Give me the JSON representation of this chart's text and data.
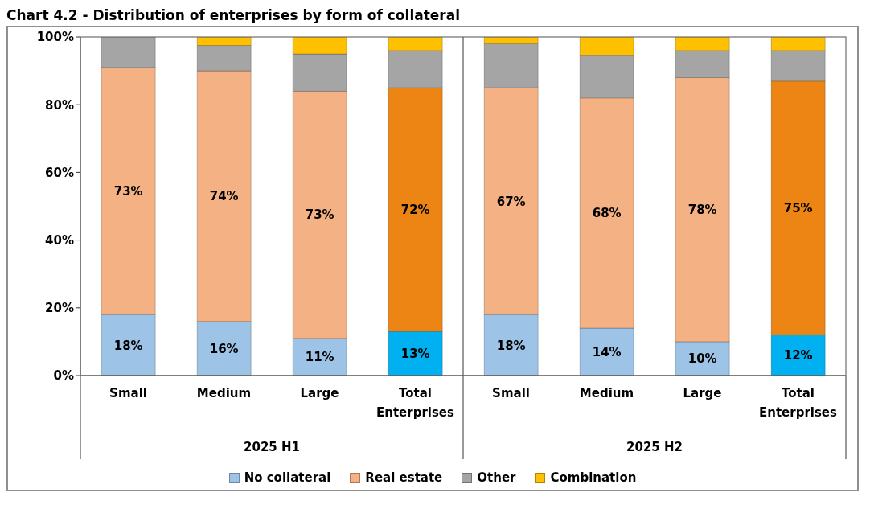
{
  "chart_data": {
    "type": "bar",
    "title": "Chart 4.2 - Distribution of enterprises by form of collateral",
    "categories": [
      "Small",
      "Medium",
      "Large",
      "Total Enterprises",
      "Small",
      "Medium",
      "Large",
      "Total Enterprises"
    ],
    "annotations": [
      "2025 H1",
      "2025 H2"
    ],
    "stacked": true,
    "series": [
      {
        "name": "No collateral",
        "color": "#9dc3e6",
        "colors": [
          "#9dc3e6",
          "#9dc3e6",
          "#9dc3e6",
          "#00b0f0",
          "#9dc3e6",
          "#9dc3e6",
          "#9dc3e6",
          "#00b0f0"
        ],
        "values": [
          18,
          16,
          11,
          13,
          18,
          14,
          10,
          12
        ],
        "value_labels": [
          "18%",
          "16%",
          "11%",
          "13%",
          "18%",
          "14%",
          "10%",
          "12%"
        ]
      },
      {
        "name": "Real estate",
        "color": "#f4b183",
        "colors": [
          "#f4b183",
          "#f4b183",
          "#f4b183",
          "#ed8514",
          "#f4b183",
          "#f4b183",
          "#f4b183",
          "#ed8514"
        ],
        "values": [
          73,
          74,
          73,
          72,
          67,
          68,
          78,
          75
        ],
        "value_labels": [
          "73%",
          "74%",
          "73%",
          "72%",
          "67%",
          "68%",
          "78%",
          "75%"
        ]
      },
      {
        "name": "Other",
        "color": "#a5a5a5",
        "values": [
          9,
          7.5,
          11,
          11,
          13,
          12.5,
          8,
          9
        ]
      },
      {
        "name": "Combination",
        "color": "#ffc000",
        "values": [
          null,
          2.5,
          5,
          4,
          2,
          5.5,
          4,
          4
        ]
      }
    ],
    "ylim": [
      0,
      100
    ],
    "yticks": [
      {
        "value": 0,
        "label": "0%"
      },
      {
        "value": 20,
        "label": "20%"
      },
      {
        "value": 40,
        "label": "40%"
      },
      {
        "value": 60,
        "label": "60%"
      },
      {
        "value": 80,
        "label": "80%"
      },
      {
        "value": 100,
        "label": "100%"
      }
    ],
    "legend": "bottom"
  }
}
